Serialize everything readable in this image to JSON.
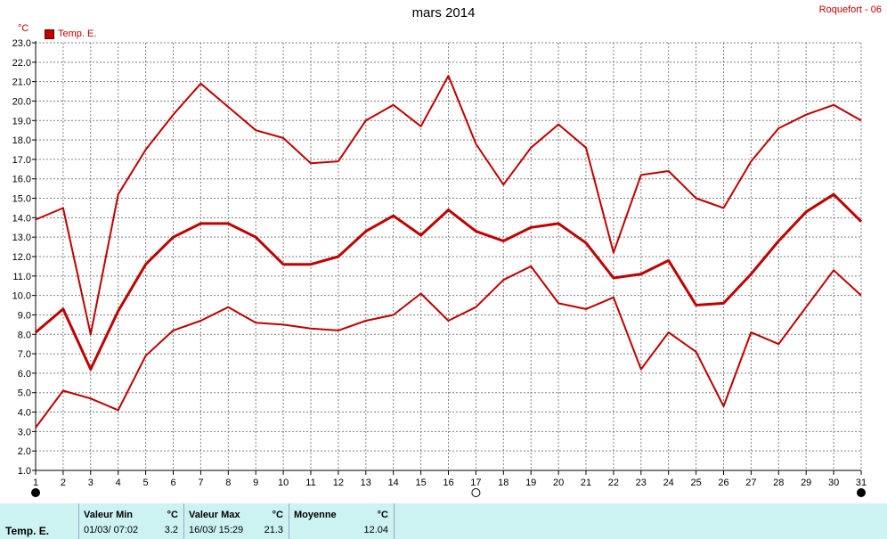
{
  "header": {
    "title": "mars 2014",
    "station": "Roquefort - 06",
    "unit": "°C",
    "legend_label": "Temp. E."
  },
  "chart_data": {
    "type": "line",
    "x": [
      1,
      2,
      3,
      4,
      5,
      6,
      7,
      8,
      9,
      10,
      11,
      12,
      13,
      14,
      15,
      16,
      17,
      18,
      19,
      20,
      21,
      22,
      23,
      24,
      25,
      26,
      27,
      28,
      29,
      30,
      31
    ],
    "series": [
      {
        "name": "max",
        "values": [
          13.9,
          14.5,
          8.0,
          15.2,
          17.5,
          19.3,
          20.9,
          19.7,
          18.5,
          18.1,
          16.8,
          16.9,
          19.0,
          19.8,
          18.7,
          21.3,
          17.8,
          15.7,
          17.6,
          18.8,
          17.6,
          12.2,
          16.2,
          16.4,
          15.0,
          14.5,
          16.9,
          18.6,
          19.3,
          19.8,
          19.0
        ]
      },
      {
        "name": "moyenne",
        "values": [
          8.1,
          9.3,
          6.2,
          9.2,
          11.6,
          13.0,
          13.7,
          13.7,
          13.0,
          11.6,
          11.6,
          12.0,
          13.3,
          14.1,
          13.1,
          14.4,
          13.3,
          12.8,
          13.5,
          13.7,
          12.7,
          10.9,
          11.1,
          11.8,
          9.5,
          9.6,
          11.1,
          12.8,
          14.3,
          15.2,
          13.8
        ]
      },
      {
        "name": "min",
        "values": [
          3.2,
          5.1,
          4.7,
          4.1,
          6.9,
          8.2,
          8.7,
          9.4,
          8.6,
          8.5,
          8.3,
          8.2,
          8.7,
          9.0,
          10.1,
          8.7,
          9.4,
          10.8,
          11.5,
          9.6,
          9.3,
          9.9,
          6.2,
          8.1,
          7.1,
          4.3,
          8.1,
          7.5,
          9.4,
          11.3,
          10.0
        ]
      }
    ],
    "ylim": [
      1.0,
      23.0
    ],
    "y_ticks": [
      "1.0",
      "2.0",
      "3.0",
      "4.0",
      "5.0",
      "6.0",
      "7.0",
      "8.0",
      "9.0",
      "10.0",
      "11.0",
      "12.0",
      "13.0",
      "14.0",
      "15.0",
      "16.0",
      "17.0",
      "18.0",
      "19.0",
      "20.0",
      "21.0",
      "22.0",
      "23.0"
    ],
    "x_ticks": [
      "1",
      "2",
      "3",
      "4",
      "5",
      "6",
      "7",
      "8",
      "9",
      "10",
      "11",
      "12",
      "13",
      "14",
      "15",
      "16",
      "17",
      "18",
      "19",
      "20",
      "21",
      "22",
      "23",
      "24",
      "25",
      "26",
      "27",
      "28",
      "29",
      "30",
      "31"
    ],
    "moon_phases": [
      {
        "day": 1,
        "phase": "new-moon"
      },
      {
        "day": 17,
        "phase": "full-moon"
      },
      {
        "day": 31,
        "phase": "new-moon"
      }
    ],
    "grid": true,
    "colors": {
      "line": "#c00000",
      "grid": "#808080",
      "axis": "#000000"
    }
  },
  "stats": {
    "label": "Temp. E.",
    "min": {
      "header": "Valeur Min",
      "unit": "°C",
      "date": "01/03/  07:02",
      "value": "3.2"
    },
    "max": {
      "header": "Valeur Max",
      "unit": "°C",
      "date": "16/03/  15:29",
      "value": "21.3"
    },
    "avg": {
      "header": "Moyenne",
      "unit": "°C",
      "value": "12.04"
    }
  }
}
